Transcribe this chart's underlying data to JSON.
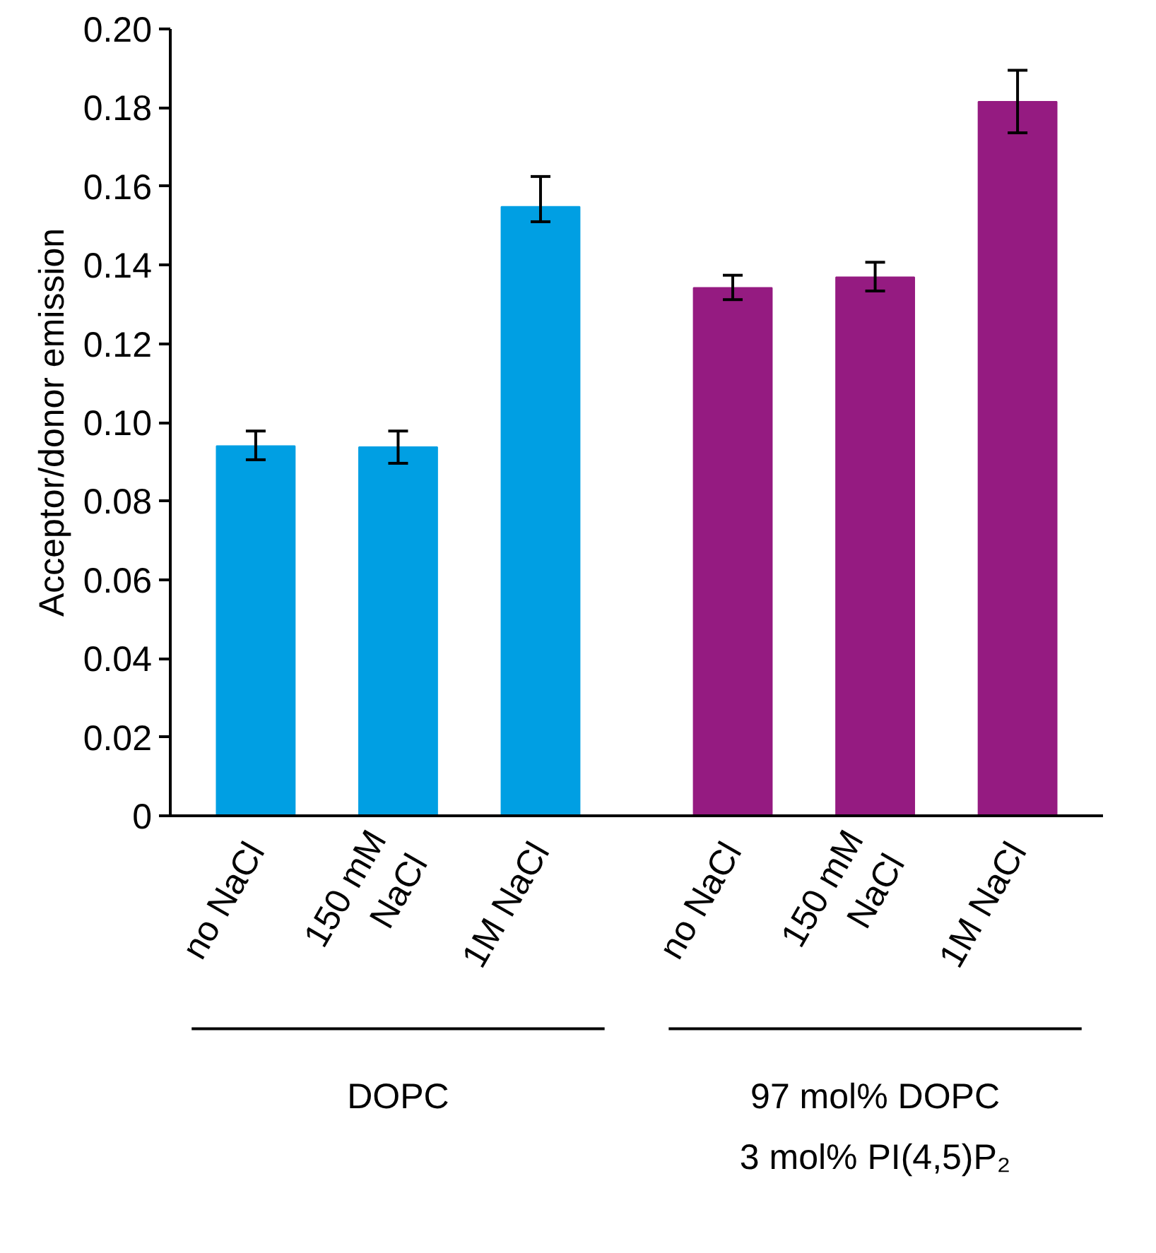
{
  "chart_data": {
    "type": "bar",
    "ylabel": "Acceptor/donor emission",
    "categories": [
      "no NaCl",
      "150 mM\nNaCl",
      "1M NaCl",
      "no NaCl",
      "150 mM\nNaCl",
      "1M NaCl"
    ],
    "values": [
      0.094,
      0.0937,
      0.1548,
      0.1342,
      0.1369,
      0.1815
    ],
    "errors": [
      [
        0.0905,
        0.0978
      ],
      [
        0.0896,
        0.0978
      ],
      [
        0.151,
        0.1625
      ],
      [
        0.1312,
        0.1374
      ],
      [
        0.1334,
        0.1407
      ],
      [
        0.1736,
        0.1895
      ]
    ],
    "colors": [
      "#009fe3",
      "#009fe3",
      "#009fe3",
      "#951b81",
      "#951b81",
      "#951b81"
    ],
    "ylim": [
      0,
      0.2
    ],
    "yticks": [
      0,
      0.02,
      0.04,
      0.06,
      0.08,
      {
        "value": 0.1,
        "label": "0.10"
      },
      0.12,
      0.14,
      0.16,
      0.18,
      {
        "value": 0.2,
        "label": "0.20"
      }
    ],
    "grid": false,
    "annotations": [
      "DOPC",
      "97 mol% DOPC\n3 mol% PI(4,5)P₂"
    ]
  }
}
